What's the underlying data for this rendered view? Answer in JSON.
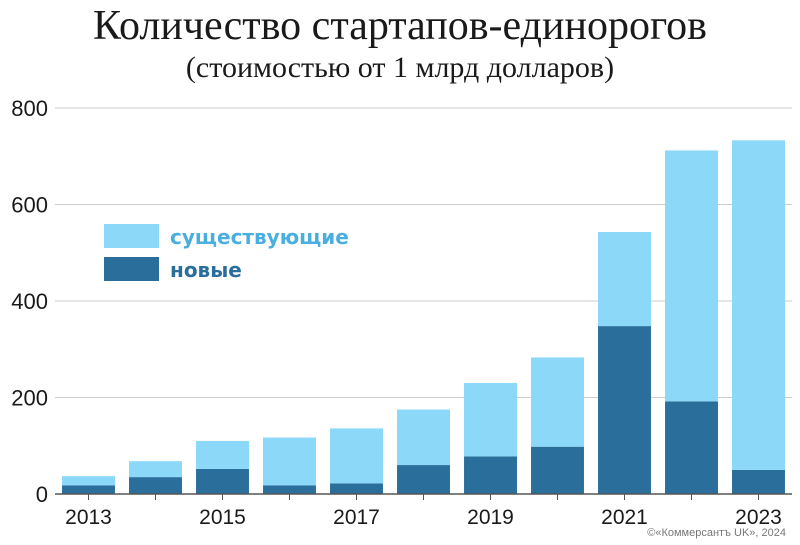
{
  "chart_data": {
    "type": "bar",
    "stacked": true,
    "title": "Количество стартапов-единорогов",
    "subtitle": "(стоимостью от 1 млрд долларов)",
    "x": [
      2013,
      2014,
      2015,
      2016,
      2017,
      2018,
      2019,
      2020,
      2021,
      2022,
      2023
    ],
    "x_tick_labels": [
      "2013",
      "2015",
      "2017",
      "2019",
      "2021",
      "2023"
    ],
    "y_ticks": [
      "0",
      "200",
      "400",
      "600",
      "800"
    ],
    "ylim": [
      0,
      800
    ],
    "grid": true,
    "legend_position": "top-left",
    "series": [
      {
        "name": "новые",
        "color": "#2a6e9c",
        "values": [
          18,
          35,
          52,
          18,
          22,
          60,
          78,
          98,
          348,
          192,
          50
        ]
      },
      {
        "name": "существующие",
        "color": "#8bd8f8",
        "values": [
          19,
          33,
          58,
          99,
          114,
          115,
          152,
          185,
          195,
          520,
          683
        ]
      }
    ],
    "legend_text_colors": {
      "new": "#2a6e9c",
      "existing": "#4aaede"
    },
    "gridline_color": "#cccccc",
    "baseline_color": "#555555"
  },
  "credit": "©«Коммерсантъ UK», 2024"
}
